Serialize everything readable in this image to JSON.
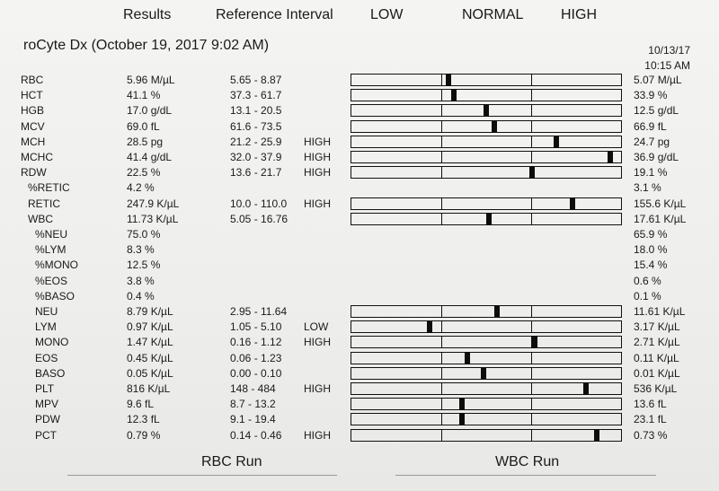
{
  "header": {
    "results": "Results",
    "reference_interval": "Reference Interval",
    "low": "LOW",
    "normal": "NORMAL",
    "high": "HIGH"
  },
  "run": {
    "title": "roCyte Dx (October 19, 2017 9:02 AM)",
    "prev_date": "10/13/17",
    "prev_time": "10:15 AM"
  },
  "rows": [
    {
      "name": "RBC",
      "value": "5.96 M/µL",
      "ref": "5.65 - 8.87",
      "flag": "",
      "prev": "5.07 M/µL",
      "level": 0.36
    },
    {
      "name": "HCT",
      "value": "41.1 %",
      "ref": "37.3 - 61.7",
      "flag": "",
      "prev": "33.9 %",
      "level": 0.38
    },
    {
      "name": "HGB",
      "value": "17.0 g/dL",
      "ref": "13.1 - 20.5",
      "flag": "",
      "prev": "12.5 g/dL",
      "level": 0.5
    },
    {
      "name": "MCV",
      "value": "69.0 fL",
      "ref": "61.6 - 73.5",
      "flag": "",
      "prev": "66.9 fL",
      "level": 0.53
    },
    {
      "name": "MCH",
      "value": "28.5 pg",
      "ref": "21.2 - 25.9",
      "flag": "HIGH",
      "prev": "24.7 pg",
      "level": 0.76
    },
    {
      "name": "MCHC",
      "value": "41.4 g/dL",
      "ref": "32.0 - 37.9",
      "flag": "HIGH",
      "prev": "36.9 g/dL",
      "level": 0.96
    },
    {
      "name": "RDW",
      "value": "22.5 %",
      "ref": "13.6 - 21.7",
      "flag": "HIGH",
      "prev": "19.1 %",
      "level": 0.67
    },
    {
      "name": "%RETIC",
      "value": "4.2 %",
      "ref": "",
      "flag": "",
      "prev": "3.1 %",
      "level": null
    },
    {
      "name": "RETIC",
      "value": "247.9 K/µL",
      "ref": "10.0 - 110.0",
      "flag": "HIGH",
      "prev": "155.6 K/µL",
      "level": 0.82
    },
    {
      "name": "WBC",
      "value": "11.73 K/µL",
      "ref": "5.05 - 16.76",
      "flag": "",
      "prev": "17.61 K/µL",
      "level": 0.51
    },
    {
      "name": "%NEU",
      "value": "75.0 %",
      "ref": "",
      "flag": "",
      "prev": "65.9 %",
      "level": null
    },
    {
      "name": "%LYM",
      "value": "8.3 %",
      "ref": "",
      "flag": "",
      "prev": "18.0 %",
      "level": null
    },
    {
      "name": "%MONO",
      "value": "12.5 %",
      "ref": "",
      "flag": "",
      "prev": "15.4 %",
      "level": null
    },
    {
      "name": "%EOS",
      "value": "3.8 %",
      "ref": "",
      "flag": "",
      "prev": "0.6 %",
      "level": null
    },
    {
      "name": "%BASO",
      "value": "0.4 %",
      "ref": "",
      "flag": "",
      "prev": "0.1 %",
      "level": null
    },
    {
      "name": "NEU",
      "value": "8.79 K/µL",
      "ref": "2.95 - 11.64",
      "flag": "",
      "prev": "11.61 K/µL",
      "level": 0.54
    },
    {
      "name": "LYM",
      "value": "0.97 K/µL",
      "ref": "1.05 - 5.10",
      "flag": "LOW",
      "prev": "3.17 K/µL",
      "level": 0.29
    },
    {
      "name": "MONO",
      "value": "1.47 K/µL",
      "ref": "0.16 - 1.12",
      "flag": "HIGH",
      "prev": "2.71 K/µL",
      "level": 0.68
    },
    {
      "name": "EOS",
      "value": "0.45 K/µL",
      "ref": "0.06 - 1.23",
      "flag": "",
      "prev": "0.11 K/µL",
      "level": 0.43
    },
    {
      "name": "BASO",
      "value": "0.05 K/µL",
      "ref": "0.00 - 0.10",
      "flag": "",
      "prev": "0.01 K/µL",
      "level": 0.49
    },
    {
      "name": "PLT",
      "value": "816 K/µL",
      "ref": "148 - 484",
      "flag": "HIGH",
      "prev": "536 K/µL",
      "level": 0.87
    },
    {
      "name": "MPV",
      "value": "9.6 fL",
      "ref": "8.7 - 13.2",
      "flag": "",
      "prev": "13.6 fL",
      "level": 0.41
    },
    {
      "name": "PDW",
      "value": "12.3 fL",
      "ref": "9.1 - 19.4",
      "flag": "",
      "prev": "23.1 fL",
      "level": 0.41
    },
    {
      "name": "PCT",
      "value": "0.79 %",
      "ref": "0.14 - 0.46",
      "flag": "HIGH",
      "prev": "0.73 %",
      "level": 0.91
    }
  ],
  "footer": {
    "rbc_run": "RBC Run",
    "wbc_run": "WBC Run"
  }
}
